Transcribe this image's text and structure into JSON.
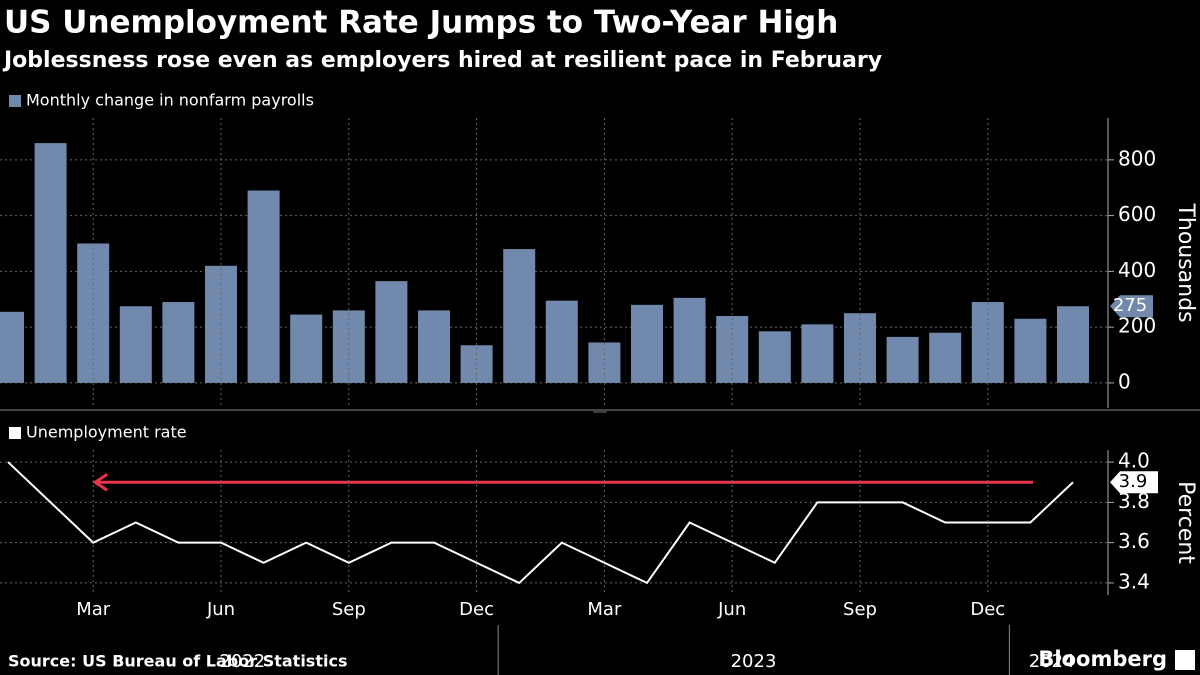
{
  "title": "US Unemployment Rate Jumps to Two-Year High",
  "subtitle": "Joblessness rose even as employers hired at resilient pace in February",
  "source": "Source: US Bureau of Labor Statistics",
  "brand": "Bloomberg",
  "chart_data": [
    {
      "type": "bar",
      "x": [
        "2022-01",
        "2022-02",
        "2022-03",
        "2022-04",
        "2022-05",
        "2022-06",
        "2022-07",
        "2022-08",
        "2022-09",
        "2022-10",
        "2022-11",
        "2022-12",
        "2023-01",
        "2023-02",
        "2023-03",
        "2023-04",
        "2023-05",
        "2023-06",
        "2023-07",
        "2023-08",
        "2023-09",
        "2023-10",
        "2023-11",
        "2023-12",
        "2024-01",
        "2024-02"
      ],
      "series": [
        {
          "name": "Monthly change in nonfarm payrolls",
          "color": "#7189ac",
          "values": [
            255,
            860,
            500,
            275,
            290,
            420,
            690,
            245,
            260,
            365,
            260,
            135,
            480,
            295,
            145,
            280,
            305,
            240,
            185,
            210,
            250,
            165,
            180,
            290,
            230,
            275
          ]
        }
      ],
      "ylabel": "Thousands",
      "ylim": [
        -90,
        950
      ],
      "yticks": [
        0,
        200,
        400,
        600,
        800
      ],
      "grid": true
    },
    {
      "type": "line",
      "x": [
        "2022-01",
        "2022-02",
        "2022-03",
        "2022-04",
        "2022-05",
        "2022-06",
        "2022-07",
        "2022-08",
        "2022-09",
        "2022-10",
        "2022-11",
        "2022-12",
        "2023-01",
        "2023-02",
        "2023-03",
        "2023-04",
        "2023-05",
        "2023-06",
        "2023-07",
        "2023-08",
        "2023-09",
        "2023-10",
        "2023-11",
        "2023-12",
        "2024-01",
        "2024-02"
      ],
      "series": [
        {
          "name": "Unemployment rate",
          "color": "#ffffff",
          "values": [
            4.0,
            3.8,
            3.6,
            3.7,
            3.6,
            3.6,
            3.5,
            3.6,
            3.5,
            3.6,
            3.6,
            3.5,
            3.4,
            3.6,
            3.5,
            3.4,
            3.7,
            3.6,
            3.5,
            3.8,
            3.8,
            3.8,
            3.7,
            3.7,
            3.7,
            3.9
          ]
        }
      ],
      "ylabel": "Percent",
      "ylim": [
        3.34,
        4.06
      ],
      "yticks": [
        {
          "value": 3.4,
          "label": "3.4"
        },
        3.6,
        3.8,
        {
          "value": 4,
          "label": "4.0"
        }
      ],
      "grid": true,
      "xticks": [
        {
          "value": "2022-03",
          "label": "Mar"
        },
        {
          "value": "2022-06",
          "label": "Jun"
        },
        {
          "value": "2022-09",
          "label": "Sep"
        },
        {
          "value": "2022-12",
          "label": "Dec"
        },
        {
          "value": "2023-03",
          "label": "Mar"
        },
        {
          "value": "2023-06",
          "label": "Jun"
        },
        {
          "value": "2023-09",
          "label": "Sep"
        },
        {
          "value": "2023-12",
          "label": "Dec"
        }
      ],
      "year_ticks": [
        "2022",
        "2023",
        "2024"
      ],
      "annotation_color": "#e8344a"
    }
  ]
}
